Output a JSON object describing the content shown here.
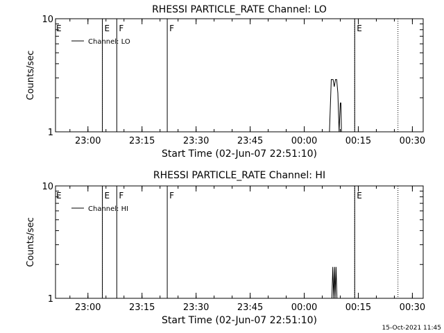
{
  "footer_timestamp": "15-Oct-2021 11:45",
  "colors": {
    "background": "#ffffff",
    "foreground": "#000000"
  },
  "chart_data": [
    {
      "type": "line",
      "title": "RHESSI PARTICLE_RATE Channel: LO",
      "xlabel": "Start Time (02-Jun-07 22:51:10)",
      "ylabel": "Counts/sec",
      "y_scale": "log",
      "ylim": [
        1,
        10
      ],
      "xlim": [
        "22:51",
        "00:33"
      ],
      "x_ticks": [
        "23:00",
        "23:15",
        "23:30",
        "23:45",
        "00:00",
        "00:15",
        "00:30"
      ],
      "y_ticks": [
        "1",
        "10"
      ],
      "legend": {
        "placement": "top-left",
        "entries": [
          "Channel: LO"
        ]
      },
      "markers": [
        {
          "time": "23:04",
          "label": "E",
          "style": "dotted"
        },
        {
          "time": "23:04",
          "label": "",
          "style": "solid"
        },
        {
          "time": "23:08",
          "label": "F",
          "style": "solid"
        },
        {
          "time": "23:22",
          "label": "F",
          "style": "solid"
        },
        {
          "time": "00:14",
          "label": "",
          "style": "dotted"
        },
        {
          "time": "00:14",
          "label": "E",
          "style": "solid"
        },
        {
          "time": "00:26",
          "label": "",
          "style": "dotted"
        }
      ],
      "series": [
        {
          "name": "Channel: LO",
          "x": [
            "00:07",
            "00:07:30",
            "00:08",
            "00:08:20",
            "00:08:40",
            "00:09",
            "00:09:20",
            "00:09:40",
            "00:10",
            "00:10:10",
            "00:10:20"
          ],
          "y": [
            1,
            2.9,
            2.9,
            2.5,
            2.9,
            2.9,
            2.2,
            1,
            1.8,
            1.8,
            1
          ]
        }
      ]
    },
    {
      "type": "line",
      "title": "RHESSI PARTICLE_RATE Channel: HI",
      "xlabel": "Start Time (02-Jun-07 22:51:10)",
      "ylabel": "Counts/sec",
      "y_scale": "log",
      "ylim": [
        1,
        10
      ],
      "xlim": [
        "22:51",
        "00:33"
      ],
      "x_ticks": [
        "23:00",
        "23:15",
        "23:30",
        "23:45",
        "00:00",
        "00:15",
        "00:30"
      ],
      "y_ticks": [
        "1",
        "10"
      ],
      "legend": {
        "placement": "top-left",
        "entries": [
          "Channel: HI"
        ]
      },
      "markers": [
        {
          "time": "23:04",
          "label": "E",
          "style": "dotted"
        },
        {
          "time": "23:04",
          "label": "",
          "style": "solid"
        },
        {
          "time": "23:08",
          "label": "F",
          "style": "solid"
        },
        {
          "time": "23:22",
          "label": "F",
          "style": "solid"
        },
        {
          "time": "00:14",
          "label": "",
          "style": "dotted"
        },
        {
          "time": "00:14",
          "label": "E",
          "style": "solid"
        },
        {
          "time": "00:26",
          "label": "",
          "style": "dotted"
        }
      ],
      "series": [
        {
          "name": "Channel: HI",
          "x": [
            "00:07:40",
            "00:07:55",
            "00:08:10",
            "00:08:25",
            "00:08:35",
            "00:08:50",
            "00:09:05"
          ],
          "y": [
            1,
            1.9,
            1,
            1.9,
            1,
            1.9,
            1
          ]
        }
      ]
    }
  ]
}
